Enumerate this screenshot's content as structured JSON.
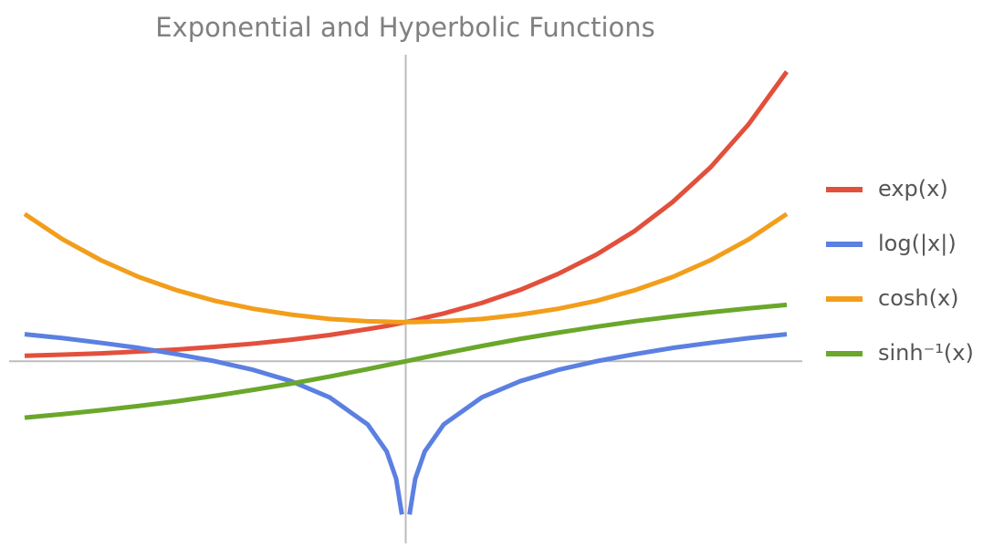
{
  "chart_data": {
    "type": "line",
    "title": "Exponential and Hyperbolic Functions",
    "x": [
      -2,
      -1.8,
      -1.6,
      -1.4,
      -1.2,
      -1,
      -0.8,
      -0.6,
      -0.4,
      -0.2,
      -0.1,
      -0.05,
      -0.02,
      0,
      0.02,
      0.05,
      0.1,
      0.2,
      0.4,
      0.6,
      0.8,
      1,
      1.2,
      1.4,
      1.6,
      1.8,
      2
    ],
    "series": [
      {
        "name": "exp(x)",
        "color": "#e2503c",
        "values": [
          0.14,
          0.17,
          0.2,
          0.25,
          0.3,
          0.37,
          0.45,
          0.55,
          0.67,
          0.82,
          0.9,
          0.95,
          0.98,
          1,
          1.02,
          1.05,
          1.11,
          1.22,
          1.49,
          1.82,
          2.23,
          2.72,
          3.32,
          4.06,
          4.95,
          6.05,
          7.39
        ]
      },
      {
        "name": "log(|x|)",
        "color": "#5b80e2",
        "values": [
          0.69,
          0.59,
          0.47,
          0.34,
          0.18,
          0,
          -0.22,
          -0.51,
          -0.92,
          -1.61,
          -2.3,
          -3.0,
          -3.91,
          null,
          -3.91,
          -3.0,
          -2.3,
          -1.61,
          -0.92,
          -0.51,
          -0.22,
          0,
          0.18,
          0.34,
          0.47,
          0.59,
          0.69
        ]
      },
      {
        "name": "cosh(x)",
        "color": "#f29e1b",
        "values": [
          3.76,
          3.11,
          2.58,
          2.15,
          1.81,
          1.54,
          1.34,
          1.19,
          1.08,
          1.02,
          1.01,
          1.0,
          1.0,
          1,
          1.0,
          1.0,
          1.01,
          1.02,
          1.08,
          1.19,
          1.34,
          1.54,
          1.81,
          2.15,
          2.58,
          3.11,
          3.76
        ]
      },
      {
        "name": "sinh⁻¹(x)",
        "color": "#6aa72b",
        "values": [
          -1.44,
          -1.35,
          -1.25,
          -1.14,
          -1.02,
          -0.88,
          -0.73,
          -0.57,
          -0.39,
          -0.2,
          -0.1,
          -0.05,
          -0.02,
          0,
          0.02,
          0.05,
          0.1,
          0.2,
          0.39,
          0.57,
          0.73,
          0.88,
          1.02,
          1.14,
          1.25,
          1.35,
          1.44
        ]
      }
    ],
    "xlim": [
      -2,
      2
    ],
    "ylim": [
      -4.6,
      7.8
    ],
    "legend": "right"
  }
}
